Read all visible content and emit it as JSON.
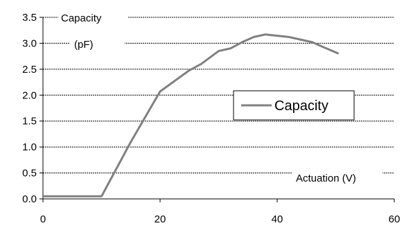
{
  "chart_data": {
    "type": "line",
    "ylabel_line1": "Capacity",
    "ylabel_line2": "(pF)",
    "xlabel": "Actuation (V)",
    "xlim": [
      0,
      60
    ],
    "ylim": [
      0,
      3.5
    ],
    "x_ticks": [
      "0",
      "20",
      "40",
      "60"
    ],
    "y_ticks": [
      "0.0",
      "0.5",
      "1.0",
      "1.5",
      "2.0",
      "2.5",
      "3.0",
      "3.5"
    ],
    "grid": "horizontal dotted",
    "legend_position": "right",
    "series": [
      {
        "name": "Capacity",
        "color": "#808080",
        "x": [
          0,
          5,
          10,
          15,
          20,
          25,
          27,
          30,
          32,
          34,
          36,
          38,
          42,
          46,
          48,
          50.5
        ],
        "y": [
          0.05,
          0.05,
          0.05,
          1.1,
          2.07,
          2.48,
          2.6,
          2.85,
          2.9,
          3.02,
          3.12,
          3.17,
          3.12,
          3.02,
          2.92,
          2.8
        ]
      }
    ]
  }
}
